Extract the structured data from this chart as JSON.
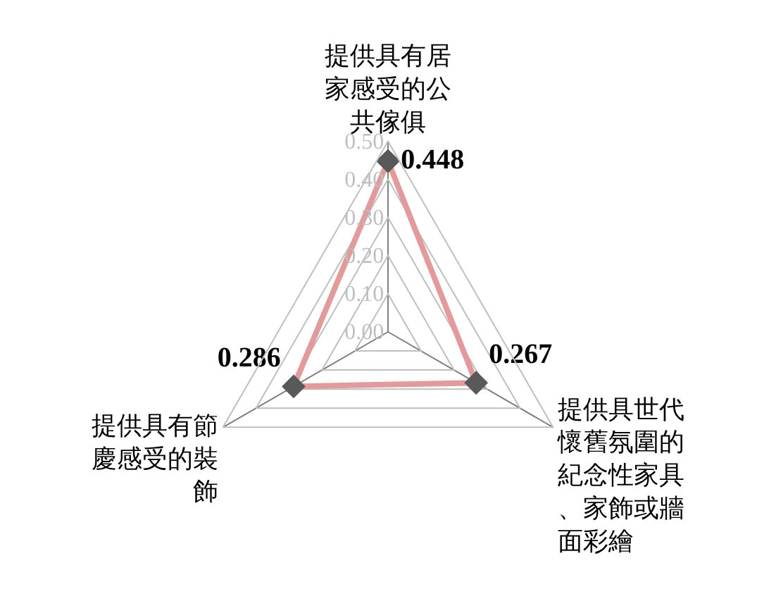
{
  "chart_data": {
    "type": "radar",
    "categories": [
      "提供具有居家感受的公共傢俱",
      "提供具世代懷舊氛圍的紀念性家具、家飾或牆面彩繪",
      "提供具有節慶感受的裝飾"
    ],
    "series": [
      {
        "color": "#e39a9a",
        "values": [
          0.448,
          0.267,
          0.286
        ]
      }
    ],
    "ylim": [
      0,
      0.5
    ],
    "yticks": [
      {
        "value": 0,
        "label": "0.00"
      },
      {
        "value": 0.1,
        "label": "0.10"
      },
      {
        "value": 0.2,
        "label": "0.20"
      },
      {
        "value": 0.3,
        "label": "0.30"
      },
      {
        "value": 0.4,
        "label": "0.40"
      },
      {
        "value": 0.5,
        "label": "0.50"
      }
    ],
    "data_labels": true,
    "grid": true,
    "marker": "diamond",
    "legend": false
  }
}
